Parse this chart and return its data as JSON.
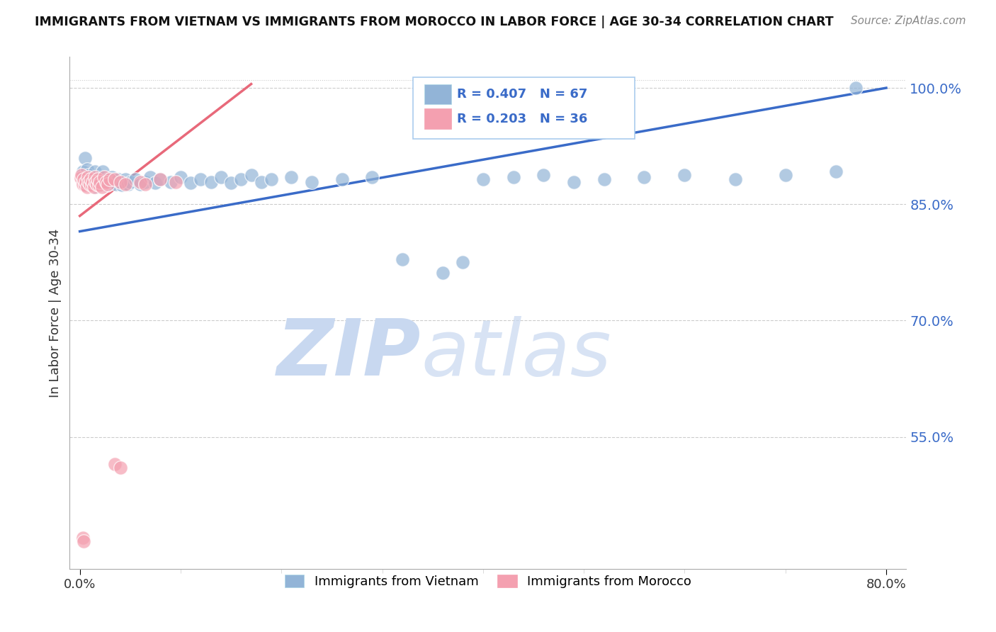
{
  "title": "IMMIGRANTS FROM VIETNAM VS IMMIGRANTS FROM MOROCCO IN LABOR FORCE | AGE 30-34 CORRELATION CHART",
  "source": "Source: ZipAtlas.com",
  "ylabel": "In Labor Force | Age 30-34",
  "xlim": [
    -0.01,
    0.82
  ],
  "ylim": [
    0.38,
    1.04
  ],
  "yticks": [
    0.55,
    0.7,
    0.85,
    1.0
  ],
  "ytick_labels": [
    "55.0%",
    "70.0%",
    "85.0%",
    "100.0%"
  ],
  "xtick_labels": [
    "0.0%",
    "80.0%"
  ],
  "xticks": [
    0.0,
    0.8
  ],
  "blue_color": "#92B4D7",
  "pink_color": "#F4A0B0",
  "blue_line_color": "#3A6BC8",
  "pink_line_color": "#E8697A",
  "blue_legend_color": "#3A6BC8",
  "watermark_zip_color": "#C8D8F0",
  "watermark_atlas_color": "#C8D8F0",
  "vietnam_x": [
    0.003,
    0.005,
    0.006,
    0.007,
    0.008,
    0.009,
    0.01,
    0.011,
    0.012,
    0.013,
    0.014,
    0.015,
    0.016,
    0.017,
    0.018,
    0.019,
    0.02,
    0.022,
    0.023,
    0.025,
    0.027,
    0.028,
    0.03,
    0.032,
    0.034,
    0.036,
    0.038,
    0.04,
    0.042,
    0.045,
    0.048,
    0.05,
    0.055,
    0.06,
    0.065,
    0.07,
    0.075,
    0.08,
    0.09,
    0.1,
    0.11,
    0.12,
    0.13,
    0.14,
    0.15,
    0.16,
    0.17,
    0.18,
    0.19,
    0.21,
    0.23,
    0.26,
    0.29,
    0.32,
    0.36,
    0.38,
    0.4,
    0.43,
    0.46,
    0.49,
    0.52,
    0.56,
    0.6,
    0.65,
    0.7,
    0.75,
    0.77
  ],
  "vietnam_y": [
    0.892,
    0.91,
    0.875,
    0.895,
    0.88,
    0.888,
    0.878,
    0.882,
    0.876,
    0.885,
    0.879,
    0.892,
    0.872,
    0.875,
    0.882,
    0.879,
    0.885,
    0.876,
    0.892,
    0.879,
    0.875,
    0.882,
    0.878,
    0.885,
    0.879,
    0.876,
    0.882,
    0.879,
    0.875,
    0.882,
    0.876,
    0.879,
    0.882,
    0.876,
    0.879,
    0.885,
    0.878,
    0.882,
    0.879,
    0.885,
    0.878,
    0.882,
    0.879,
    0.885,
    0.878,
    0.882,
    0.888,
    0.879,
    0.882,
    0.885,
    0.879,
    0.882,
    0.885,
    0.779,
    0.762,
    0.775,
    0.882,
    0.885,
    0.888,
    0.879,
    0.882,
    0.885,
    0.888,
    0.882,
    0.888,
    0.892,
    1.0
  ],
  "morocco_x": [
    0.001,
    0.002,
    0.003,
    0.004,
    0.005,
    0.006,
    0.007,
    0.008,
    0.009,
    0.01,
    0.011,
    0.012,
    0.013,
    0.014,
    0.015,
    0.016,
    0.017,
    0.018,
    0.019,
    0.02,
    0.022,
    0.024,
    0.026,
    0.028,
    0.03,
    0.035,
    0.04,
    0.045,
    0.06,
    0.065,
    0.08,
    0.095,
    0.003,
    0.004,
    0.035,
    0.04
  ],
  "morocco_y": [
    0.884,
    0.888,
    0.876,
    0.882,
    0.875,
    0.879,
    0.872,
    0.885,
    0.879,
    0.876,
    0.882,
    0.875,
    0.879,
    0.872,
    0.885,
    0.879,
    0.876,
    0.882,
    0.875,
    0.879,
    0.872,
    0.885,
    0.879,
    0.876,
    0.882,
    0.882,
    0.879,
    0.876,
    0.879,
    0.876,
    0.882,
    0.879,
    0.42,
    0.415,
    0.515,
    0.51
  ]
}
